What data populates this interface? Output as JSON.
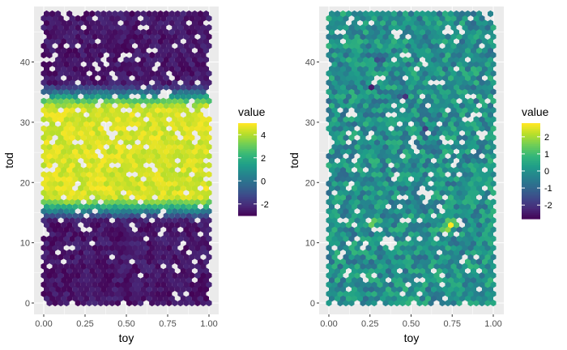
{
  "chart_data": [
    {
      "type": "heatmap",
      "subtype": "hexbin",
      "xlabel": "toy",
      "ylabel": "tod",
      "xlim": [
        0,
        1
      ],
      "ylim": [
        0,
        48
      ],
      "xticks": [
        0,
        0.25,
        0.5,
        0.75,
        1
      ],
      "xtick_labels": [
        "0.00",
        "0.25",
        "0.50",
        "0.75",
        "1.00"
      ],
      "yticks": [
        0,
        10,
        20,
        30,
        40
      ],
      "ytick_labels": [
        "0",
        "10",
        "20",
        "30",
        "40"
      ],
      "legend": {
        "title": "value",
        "position": "right",
        "range": [
          -3,
          5
        ],
        "ticks": [
          4,
          2,
          0,
          -2
        ],
        "tick_labels": [
          "4",
          "2",
          "0",
          "-2"
        ]
      },
      "colorscale": "viridis",
      "pattern": "values near -2.5 for tod < 13 and tod > 36; near 4.5 for tod 18–31; transition bands around tod 14–17 and 32–35",
      "grid": true
    },
    {
      "type": "heatmap",
      "subtype": "hexbin",
      "xlabel": "toy",
      "ylabel": "tod",
      "xlim": [
        0,
        1
      ],
      "ylim": [
        0,
        48
      ],
      "xticks": [
        0,
        0.25,
        0.5,
        0.75,
        1
      ],
      "xtick_labels": [
        "0.00",
        "0.25",
        "0.50",
        "0.75",
        "1.00"
      ],
      "yticks": [
        0,
        10,
        20,
        30,
        40
      ],
      "ytick_labels": [
        "0",
        "10",
        "20",
        "30",
        "40"
      ],
      "legend": {
        "title": "value",
        "position": "right",
        "range": [
          -2.8,
          2.8
        ],
        "ticks": [
          2,
          1,
          0,
          -1,
          -2
        ],
        "tick_labels": [
          "2",
          "1",
          "0",
          "-1",
          "-2"
        ]
      },
      "colorscale": "viridis",
      "pattern": "mostly near 0 with noise; highlights near (0.27, 13.5) and (0.73, 13) reaching ~2.5; dark spots near (0.27, 36) and (0.45, 34)",
      "grid": true
    }
  ],
  "colors": {
    "panel_background": "#ebebeb",
    "grid_major": "#ffffff",
    "viridis": [
      "#440154",
      "#482878",
      "#3e4989",
      "#31688e",
      "#26828e",
      "#1f9e89",
      "#35b779",
      "#6ece58",
      "#b5de2b",
      "#fde725"
    ]
  }
}
